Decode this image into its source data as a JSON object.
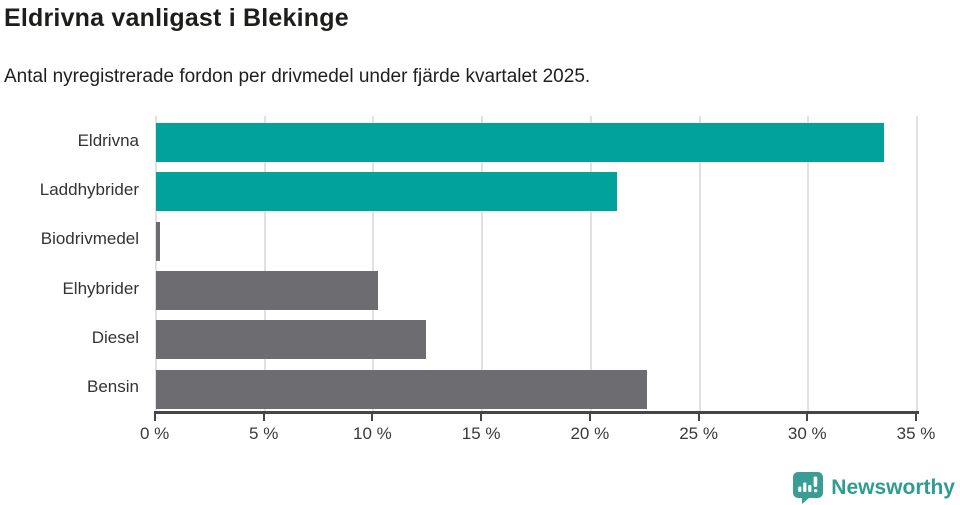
{
  "chart_data": {
    "type": "bar",
    "orientation": "horizontal",
    "title": "Eldrivna vanligast i Blekinge",
    "subtitle": "Antal nyregistrerade fordon per drivmedel under fjärde kvartalet 2025.",
    "categories": [
      "Eldrivna",
      "Laddhybrider",
      "Biodrivmedel",
      "Elhybrider",
      "Diesel",
      "Bensin"
    ],
    "values": [
      33.5,
      21.2,
      0.2,
      10.2,
      12.4,
      22.6
    ],
    "unit": "%",
    "xlim": [
      0,
      35
    ],
    "xticks": [
      0,
      5,
      10,
      15,
      20,
      25,
      30,
      35
    ],
    "xtick_labels": [
      "0 %",
      "5 %",
      "10 %",
      "15 %",
      "20 %",
      "25 %",
      "30 %",
      "35 %"
    ],
    "bar_colors": [
      "#00a29b",
      "#00a29b",
      "#6c6c71",
      "#6c6c71",
      "#6c6c71",
      "#6c6c71"
    ],
    "grid": true,
    "legend_position": "none",
    "colors": {
      "highlight": "#00a29b",
      "neutral": "#6c6c71",
      "gridline": "#e1e1e1",
      "axis": "#46464a",
      "title": "#1d1d1b",
      "label": "#333333"
    }
  },
  "branding": {
    "logo_text": "Newsworthy",
    "logo_icon": "bar-chart-speech-bubble-icon",
    "logo_color": "#2f9c93"
  }
}
